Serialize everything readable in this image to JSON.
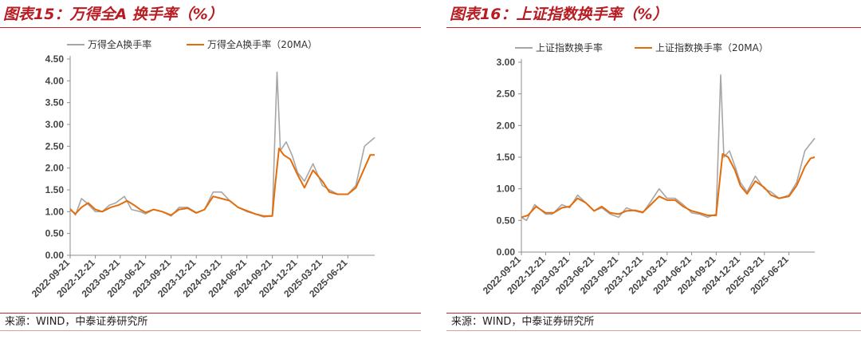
{
  "charts": [
    {
      "title": "图表15：万得全A 换手率（%）",
      "source": "来源：WIND，中泰证券研究所"
    },
    {
      "title": "图表16：上证指数换手率（%）",
      "source": "来源：WIND，中泰证券研究所"
    }
  ],
  "chart_data": [
    {
      "type": "line",
      "title": "图表15：万得全A 换手率（%）",
      "ylim": [
        0,
        4.5
      ],
      "yticks": [
        "0.00",
        "0.50",
        "1.00",
        "1.50",
        "2.00",
        "2.50",
        "3.00",
        "3.50",
        "4.00",
        "4.50"
      ],
      "xticks": [
        "2022-09-21",
        "2022-12-21",
        "2023-03-21",
        "2023-06-21",
        "2023-09-21",
        "2023-12-21",
        "2024-03-21",
        "2024-06-21",
        "2024-09-21",
        "2024-12-21",
        "2025-03-21",
        "2025-06-21"
      ],
      "x_range": [
        "2022-09-21",
        "2025-09-26"
      ],
      "colors": {
        "daily": "#a6a6a6",
        "ma": "#e46c0a"
      },
      "grid": false,
      "legend_position": "top",
      "series": [
        {
          "name": "万得全A换手率",
          "role": "daily",
          "points": [
            [
              "2022-09-21",
              1.08
            ],
            [
              "2022-10-10",
              0.92
            ],
            [
              "2022-11-01",
              1.3
            ],
            [
              "2022-11-20",
              1.2
            ],
            [
              "2022-12-21",
              1.0
            ],
            [
              "2023-01-15",
              1.0
            ],
            [
              "2023-02-10",
              1.15
            ],
            [
              "2023-03-05",
              1.2
            ],
            [
              "2023-04-05",
              1.35
            ],
            [
              "2023-05-01",
              1.05
            ],
            [
              "2023-06-01",
              1.0
            ],
            [
              "2023-06-21",
              0.95
            ],
            [
              "2023-07-20",
              1.05
            ],
            [
              "2023-08-20",
              1.0
            ],
            [
              "2023-09-21",
              0.9
            ],
            [
              "2023-10-20",
              1.1
            ],
            [
              "2023-11-20",
              1.1
            ],
            [
              "2023-12-21",
              0.98
            ],
            [
              "2024-01-20",
              1.05
            ],
            [
              "2024-02-20",
              1.45
            ],
            [
              "2024-03-21",
              1.45
            ],
            [
              "2024-04-20",
              1.25
            ],
            [
              "2024-05-20",
              1.1
            ],
            [
              "2024-06-21",
              1.0
            ],
            [
              "2024-07-20",
              0.95
            ],
            [
              "2024-08-20",
              0.88
            ],
            [
              "2024-09-21",
              0.9
            ],
            [
              "2024-10-01",
              2.9
            ],
            [
              "2024-10-08",
              4.2
            ],
            [
              "2024-10-20",
              2.4
            ],
            [
              "2024-11-10",
              2.6
            ],
            [
              "2024-12-01",
              2.3
            ],
            [
              "2024-12-21",
              1.9
            ],
            [
              "2025-01-15",
              1.7
            ],
            [
              "2025-02-15",
              2.1
            ],
            [
              "2025-03-21",
              1.6
            ],
            [
              "2025-04-15",
              1.5
            ],
            [
              "2025-05-15",
              1.4
            ],
            [
              "2025-06-21",
              1.4
            ],
            [
              "2025-07-20",
              1.6
            ],
            [
              "2025-08-20",
              2.5
            ],
            [
              "2025-09-26",
              2.7
            ]
          ]
        },
        {
          "name": "万得全A换手率（20MA）",
          "role": "ma",
          "points": [
            [
              "2022-09-21",
              1.05
            ],
            [
              "2022-10-10",
              0.95
            ],
            [
              "2022-11-01",
              1.1
            ],
            [
              "2022-11-25",
              1.2
            ],
            [
              "2022-12-21",
              1.05
            ],
            [
              "2023-01-15",
              1.0
            ],
            [
              "2023-02-15",
              1.1
            ],
            [
              "2023-03-15",
              1.15
            ],
            [
              "2023-04-15",
              1.25
            ],
            [
              "2023-05-10",
              1.15
            ],
            [
              "2023-06-01",
              1.05
            ],
            [
              "2023-06-21",
              0.98
            ],
            [
              "2023-07-20",
              1.05
            ],
            [
              "2023-08-20",
              1.0
            ],
            [
              "2023-09-21",
              0.92
            ],
            [
              "2023-10-20",
              1.05
            ],
            [
              "2023-11-20",
              1.08
            ],
            [
              "2023-12-21",
              0.97
            ],
            [
              "2024-01-20",
              1.05
            ],
            [
              "2024-02-20",
              1.35
            ],
            [
              "2024-03-21",
              1.3
            ],
            [
              "2024-04-20",
              1.25
            ],
            [
              "2024-05-20",
              1.1
            ],
            [
              "2024-06-21",
              1.02
            ],
            [
              "2024-07-20",
              0.95
            ],
            [
              "2024-08-20",
              0.9
            ],
            [
              "2024-09-21",
              0.9
            ],
            [
              "2024-10-01",
              1.6
            ],
            [
              "2024-10-15",
              2.45
            ],
            [
              "2024-11-01",
              2.3
            ],
            [
              "2024-11-25",
              2.2
            ],
            [
              "2024-12-21",
              1.85
            ],
            [
              "2025-01-15",
              1.55
            ],
            [
              "2025-02-15",
              1.95
            ],
            [
              "2025-03-21",
              1.7
            ],
            [
              "2025-04-15",
              1.45
            ],
            [
              "2025-05-15",
              1.4
            ],
            [
              "2025-06-21",
              1.4
            ],
            [
              "2025-07-20",
              1.55
            ],
            [
              "2025-08-20",
              2.0
            ],
            [
              "2025-09-10",
              2.3
            ],
            [
              "2025-09-26",
              2.3
            ]
          ]
        }
      ]
    },
    {
      "type": "line",
      "title": "图表16：上证指数换手率（%）",
      "ylim": [
        0,
        3.0
      ],
      "yticks": [
        "0.00",
        "0.50",
        "1.00",
        "1.50",
        "2.00",
        "2.50",
        "3.00"
      ],
      "xticks": [
        "2022-09-21",
        "2022-12-21",
        "2023-03-21",
        "2023-06-21",
        "2023-09-21",
        "2023-12-21",
        "2024-03-21",
        "2024-06-21",
        "2024-09-21",
        "2024-12-21",
        "2025-03-21",
        "2025-06-21"
      ],
      "x_range": [
        "2022-09-21",
        "2025-09-26"
      ],
      "colors": {
        "daily": "#a6a6a6",
        "ma": "#e46c0a"
      },
      "grid": false,
      "legend_position": "top",
      "series": [
        {
          "name": "上证指数换手率",
          "role": "daily",
          "points": [
            [
              "2022-09-21",
              0.55
            ],
            [
              "2022-10-10",
              0.5
            ],
            [
              "2022-11-10",
              0.75
            ],
            [
              "2022-12-21",
              0.6
            ],
            [
              "2023-01-15",
              0.6
            ],
            [
              "2023-02-20",
              0.75
            ],
            [
              "2023-03-21",
              0.7
            ],
            [
              "2023-04-20",
              0.9
            ],
            [
              "2023-05-15",
              0.8
            ],
            [
              "2023-06-21",
              0.65
            ],
            [
              "2023-07-20",
              0.7
            ],
            [
              "2023-08-20",
              0.6
            ],
            [
              "2023-09-21",
              0.55
            ],
            [
              "2023-10-20",
              0.7
            ],
            [
              "2023-11-20",
              0.65
            ],
            [
              "2023-12-21",
              0.62
            ],
            [
              "2024-01-20",
              0.8
            ],
            [
              "2024-02-20",
              1.0
            ],
            [
              "2024-03-21",
              0.85
            ],
            [
              "2024-04-20",
              0.85
            ],
            [
              "2024-05-20",
              0.75
            ],
            [
              "2024-06-21",
              0.62
            ],
            [
              "2024-07-20",
              0.6
            ],
            [
              "2024-08-20",
              0.55
            ],
            [
              "2024-09-21",
              0.6
            ],
            [
              "2024-10-01",
              1.9
            ],
            [
              "2024-10-08",
              2.8
            ],
            [
              "2024-10-20",
              1.5
            ],
            [
              "2024-11-10",
              1.6
            ],
            [
              "2024-12-01",
              1.35
            ],
            [
              "2024-12-21",
              1.1
            ],
            [
              "2025-01-15",
              0.95
            ],
            [
              "2025-02-15",
              1.2
            ],
            [
              "2025-03-21",
              1.0
            ],
            [
              "2025-04-15",
              0.95
            ],
            [
              "2025-05-15",
              0.85
            ],
            [
              "2025-06-21",
              0.9
            ],
            [
              "2025-07-20",
              1.1
            ],
            [
              "2025-08-20",
              1.6
            ],
            [
              "2025-09-26",
              1.8
            ]
          ]
        },
        {
          "name": "上证指数换手率（20MA）",
          "role": "ma",
          "points": [
            [
              "2022-09-21",
              0.55
            ],
            [
              "2022-10-15",
              0.58
            ],
            [
              "2022-11-15",
              0.72
            ],
            [
              "2022-12-21",
              0.62
            ],
            [
              "2023-01-20",
              0.62
            ],
            [
              "2023-02-20",
              0.7
            ],
            [
              "2023-03-21",
              0.72
            ],
            [
              "2023-04-20",
              0.85
            ],
            [
              "2023-05-20",
              0.78
            ],
            [
              "2023-06-21",
              0.65
            ],
            [
              "2023-07-20",
              0.72
            ],
            [
              "2023-08-20",
              0.62
            ],
            [
              "2023-09-21",
              0.6
            ],
            [
              "2023-10-20",
              0.65
            ],
            [
              "2023-11-20",
              0.66
            ],
            [
              "2023-12-21",
              0.63
            ],
            [
              "2024-01-20",
              0.75
            ],
            [
              "2024-02-20",
              0.88
            ],
            [
              "2024-03-21",
              0.82
            ],
            [
              "2024-04-20",
              0.82
            ],
            [
              "2024-05-20",
              0.72
            ],
            [
              "2024-06-21",
              0.65
            ],
            [
              "2024-07-20",
              0.62
            ],
            [
              "2024-08-20",
              0.58
            ],
            [
              "2024-09-21",
              0.58
            ],
            [
              "2024-10-01",
              1.0
            ],
            [
              "2024-10-15",
              1.55
            ],
            [
              "2024-11-05",
              1.5
            ],
            [
              "2024-11-30",
              1.3
            ],
            [
              "2024-12-21",
              1.05
            ],
            [
              "2025-01-15",
              0.92
            ],
            [
              "2025-02-15",
              1.12
            ],
            [
              "2025-03-21",
              1.02
            ],
            [
              "2025-04-15",
              0.9
            ],
            [
              "2025-05-15",
              0.85
            ],
            [
              "2025-06-21",
              0.88
            ],
            [
              "2025-07-20",
              1.05
            ],
            [
              "2025-08-20",
              1.35
            ],
            [
              "2025-09-10",
              1.48
            ],
            [
              "2025-09-26",
              1.5
            ]
          ]
        }
      ]
    }
  ]
}
